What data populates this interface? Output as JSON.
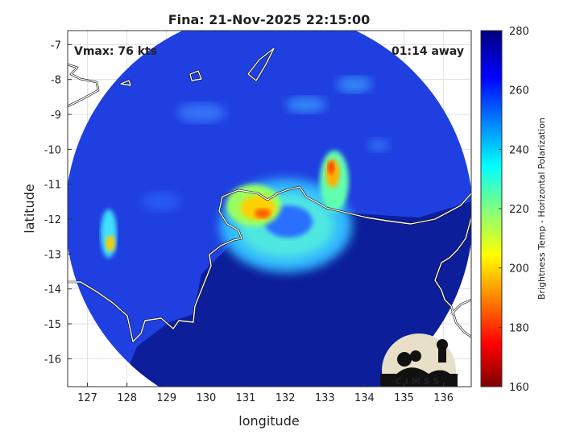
{
  "title": "Fina: 21-Nov-2025 22:15:00",
  "vmax_label": "Vmax: 76 kts",
  "away_label": "01:14 away",
  "xlabel": "longitude",
  "ylabel": "latitude",
  "colorbar_label": "Brightness Temp - Horizontal Polarization",
  "logo_text": "CIMSS",
  "x_ticks": [
    "127",
    "128",
    "129",
    "130",
    "131",
    "132",
    "133",
    "134",
    "135",
    "136"
  ],
  "y_ticks": [
    "-7",
    "-8",
    "-9",
    "-10",
    "-11",
    "-12",
    "-13",
    "-14",
    "-15",
    "-16"
  ],
  "cbar_ticks": [
    "280",
    "260",
    "240",
    "220",
    "200",
    "180",
    "160"
  ],
  "map_extent": {
    "lon": [
      126.5,
      136.7
    ],
    "lat": [
      -16.8,
      -6.6
    ]
  },
  "colorbar_range": [
    160,
    280
  ],
  "colors": {
    "cold": "#7f0000",
    "mid": "#ffff00",
    "warm": "#00007f",
    "coast": "#ffffff"
  },
  "swath_center": {
    "lon": 132.15,
    "lat": -11.6
  }
}
